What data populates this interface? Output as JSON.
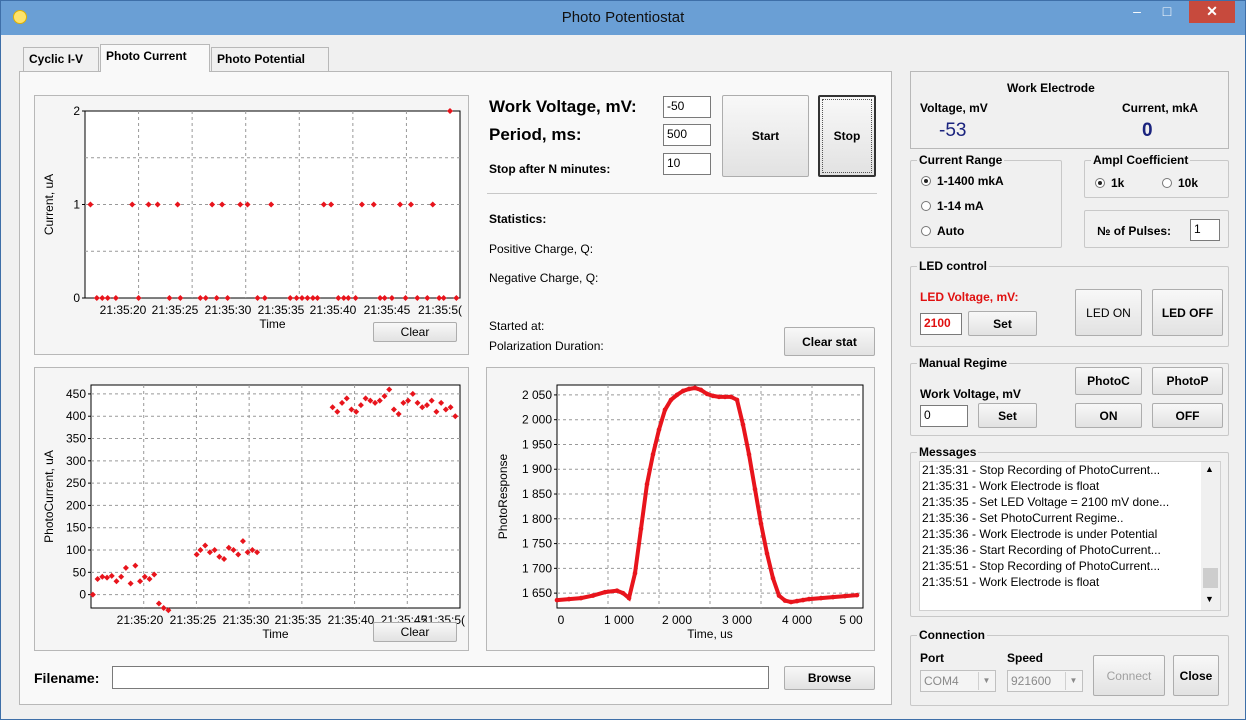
{
  "window": {
    "title": "Photo Potentiostat",
    "min": "–",
    "max": "□",
    "close": "✕"
  },
  "tabs": [
    {
      "label": "Cyclic I-V",
      "active": false
    },
    {
      "label": "Photo Current",
      "active": true
    },
    {
      "label": "Photo Potential",
      "active": false
    }
  ],
  "params": {
    "work_voltage_label": "Work Voltage, mV:",
    "work_voltage_value": "-50",
    "period_label": "Period, ms:",
    "period_value": "500",
    "stop_after_label": "Stop after N minutes:",
    "stop_after_value": "10",
    "start_label": "Start",
    "stop_label": "Stop"
  },
  "stats": {
    "title": "Statistics:",
    "positive": "Positive Charge, Q:",
    "negative": "Negative Charge, Q:",
    "started": "Started at:",
    "duration": "Polarization Duration:",
    "clear_stat": "Clear stat"
  },
  "filename": {
    "label": "Filename:",
    "value": "",
    "browse": "Browse"
  },
  "work_electrode": {
    "title": "Work Electrode",
    "voltage_label": "Voltage, mV",
    "voltage_value": "-53",
    "current_label": "Current, mkA",
    "current_value": "0"
  },
  "current_range": {
    "title": "Current Range",
    "options": [
      "1-1400 mkA",
      "1-14 mA",
      "Auto"
    ],
    "selected": 0
  },
  "ampl": {
    "title": "Ampl Coefficient",
    "options": [
      "1k",
      "10k"
    ],
    "selected": 0
  },
  "pulses": {
    "label": "№ of Pulses:",
    "value": "1"
  },
  "led": {
    "title": "LED control",
    "voltage_label": "LED Voltage, mV:",
    "voltage_value": "2100",
    "set": "Set",
    "on": "LED ON",
    "off": "LED OFF"
  },
  "manual": {
    "title": "Manual Regime",
    "voltage_label": "Work Voltage, mV",
    "voltage_value": "0",
    "set": "Set",
    "photoc": "PhotoC",
    "photop": "PhotoP",
    "on": "ON",
    "off": "OFF"
  },
  "messages": {
    "title": "Messages",
    "lines": [
      "21:35:31 - Stop Recording of PhotoCurrent...",
      "21:35:31 - Work Electrode is float",
      "21:35:35 - Set LED Voltage = 2100 mV done...",
      "21:35:36 - Set PhotoCurrent Regime..",
      "21:35:36 - Work Electrode is under Potential",
      "21:35:36 - Start Recording of PhotoCurrent...",
      "21:35:51 - Stop Recording of PhotoCurrent...",
      "21:35:51 - Work Electrode is float"
    ]
  },
  "connection": {
    "title": "Connection",
    "port_label": "Port",
    "port_value": "COM4",
    "speed_label": "Speed",
    "speed_value": "921600",
    "connect": "Connect",
    "close": "Close"
  },
  "colors": {
    "marker": "#e8141c",
    "voltage_value": "#1a237e",
    "led_label": "#e01010"
  },
  "chart_data": [
    {
      "type": "scatter",
      "title": "",
      "xlabel": "Time",
      "ylabel": "Current, uA",
      "ylim": [
        0,
        2
      ],
      "yticks": [
        "0",
        "1",
        "2"
      ],
      "xticks": [
        "21:35:20",
        "21:35:25",
        "21:35:30",
        "21:35:35",
        "21:35:40",
        "21:35:45",
        "21:35:5("
      ],
      "clear_label": "Clear",
      "x": [
        13.3,
        14.0,
        14.6,
        15.2,
        16.1,
        17.9,
        18.6,
        19.7,
        20.7,
        22.0,
        22.9,
        23.2,
        25.4,
        26.0,
        26.7,
        27.2,
        27.8,
        28.4,
        29.8,
        30.6,
        31.7,
        32.5,
        33.2,
        35.3,
        36.0,
        36.6,
        37.2,
        37.8,
        38.3,
        39.0,
        39.8,
        40.6,
        41.2,
        41.7,
        42.5,
        43.2,
        44.5,
        45.2,
        45.7,
        46.5,
        47.4,
        48.0,
        48.6,
        49.3,
        50.4,
        51.0,
        51.7,
        52.2,
        52.9,
        53.6
      ],
      "y": [
        1,
        0,
        0,
        0,
        0,
        1,
        0,
        1,
        1,
        0,
        1,
        0,
        0,
        0,
        1,
        0,
        1,
        0,
        1,
        1,
        0,
        0,
        1,
        0,
        0,
        0,
        0,
        0,
        0,
        1,
        1,
        0,
        0,
        0,
        0,
        1,
        1,
        0,
        0,
        0,
        1,
        0,
        1,
        0,
        0,
        1,
        0,
        0,
        2,
        0
      ],
      "grid": true,
      "grid_lines": [
        0,
        0.5,
        1,
        1.5,
        2
      ],
      "xlim": [
        12.7,
        54
      ]
    },
    {
      "type": "scatter",
      "title": "",
      "xlabel": "Time",
      "ylabel": "PhotoCurrent, uA",
      "ylim": [
        -30,
        470
      ],
      "yticks": [
        "0",
        "50",
        "100",
        "150",
        "200",
        "250",
        "300",
        "350",
        "400",
        "450"
      ],
      "xticks": [
        "21:35:20",
        "21:35:25",
        "21:35:30",
        "21:35:35",
        "21:35:40",
        "21:35:45",
        "21:35:5("
      ],
      "clear_label": "Clear",
      "x": [
        15.1,
        15.6,
        16.1,
        16.6,
        17.1,
        17.6,
        18.1,
        18.6,
        19.1,
        19.6,
        20.1,
        20.6,
        21.1,
        21.6,
        22.1,
        22.6,
        23.1,
        26.1,
        26.5,
        27.0,
        27.5,
        28.0,
        28.5,
        29.0,
        29.5,
        30.0,
        30.5,
        31.0,
        31.5,
        32.0,
        32.5,
        40.5,
        41.0,
        41.5,
        42.0,
        42.5,
        43.0,
        43.5,
        44.0,
        44.5,
        45.0,
        45.5,
        46.0,
        46.5,
        47.0,
        47.5,
        48.0,
        48.5,
        49.0,
        49.5,
        50.0,
        50.5,
        51.0,
        51.5,
        52.0,
        52.5,
        53.0,
        53.5
      ],
      "y": [
        0,
        35,
        40,
        38,
        42,
        30,
        40,
        60,
        25,
        65,
        30,
        40,
        35,
        45,
        -20,
        -30,
        -35,
        90,
        100,
        110,
        95,
        100,
        85,
        80,
        105,
        100,
        90,
        120,
        95,
        100,
        95,
        420,
        410,
        430,
        440,
        415,
        410,
        425,
        440,
        435,
        430,
        435,
        445,
        460,
        415,
        405,
        430,
        435,
        450,
        430,
        420,
        425,
        435,
        410,
        430,
        415,
        420,
        400
      ],
      "grid": true,
      "xlim": [
        14.9,
        54
      ]
    },
    {
      "type": "scatter",
      "title": "",
      "xlabel": "Time, us",
      "ylabel": "PhotoResponse",
      "xlim": [
        0,
        5100
      ],
      "ylim": [
        1620,
        2070
      ],
      "xticks": [
        "0",
        "1 000",
        "2 000",
        "3 000",
        "4 000",
        "5 00"
      ],
      "yticks": [
        "1 650",
        "1 700",
        "1 750",
        "1 800",
        "1 850",
        "1 900",
        "1 950",
        "2 000",
        "2 050"
      ],
      "x": [
        0,
        200,
        400,
        600,
        800,
        1000,
        1100,
        1200,
        1300,
        1400,
        1500,
        1600,
        1700,
        1800,
        1900,
        2000,
        2100,
        2200,
        2300,
        2400,
        2500,
        2600,
        2700,
        2800,
        2900,
        3000,
        3100,
        3200,
        3300,
        3400,
        3500,
        3600,
        3700,
        3800,
        3900,
        4000,
        4100,
        4200,
        4400,
        4600,
        4800,
        5000
      ],
      "y": [
        1636,
        1638,
        1640,
        1645,
        1652,
        1655,
        1650,
        1640,
        1690,
        1780,
        1870,
        1930,
        1980,
        2020,
        2040,
        2050,
        2058,
        2062,
        2064,
        2060,
        2052,
        2048,
        2046,
        2046,
        2046,
        2040,
        1990,
        1930,
        1860,
        1790,
        1730,
        1680,
        1645,
        1635,
        1632,
        1634,
        1636,
        1638,
        1640,
        1642,
        1644,
        1646
      ],
      "grid": true
    }
  ]
}
